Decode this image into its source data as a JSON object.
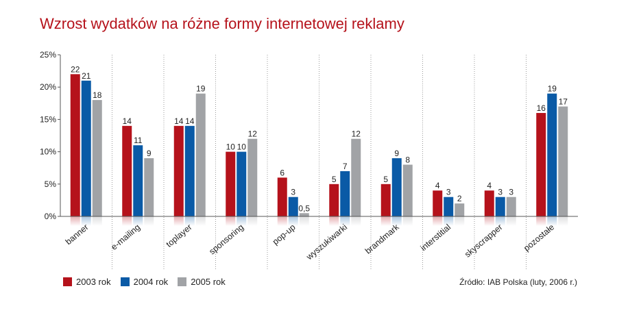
{
  "chart_data": {
    "type": "bar",
    "title": "Wzrost wydatków na różne formy internetowej reklamy",
    "categories": [
      "banner",
      "e-mailing",
      "toplayer",
      "sponsoring",
      "pop-up",
      "wyszukiwarki",
      "brandmark",
      "interstitial",
      "skyscrapper",
      "pozostałe"
    ],
    "series": [
      {
        "name": "2003 rok",
        "color": "#b5121b",
        "values": [
          22,
          14,
          14,
          10,
          6,
          5,
          5,
          4,
          4,
          16
        ],
        "labels": [
          "22",
          "14",
          "14",
          "10",
          "6",
          "5",
          "5",
          "4",
          "4",
          "16"
        ]
      },
      {
        "name": "2004 rok",
        "color": "#0a5aa6",
        "values": [
          21,
          11,
          14,
          10,
          3,
          7,
          9,
          3,
          3,
          19
        ],
        "labels": [
          "21",
          "11",
          "14",
          "10",
          "3",
          "7",
          "9",
          "3",
          "3",
          "19"
        ]
      },
      {
        "name": "2005 rok",
        "color": "#a1a3a6",
        "values": [
          18,
          9,
          19,
          12,
          0.5,
          12,
          8,
          2,
          3,
          17
        ],
        "labels": [
          "18",
          "9",
          "19",
          "12",
          "0,5",
          "12",
          "8",
          "2",
          "3",
          "17"
        ]
      }
    ],
    "yticks": [
      "0%",
      "5%",
      "10%",
      "15%",
      "20%",
      "25%"
    ],
    "ylim": [
      0,
      25
    ],
    "grid": false,
    "legend_position": "bottom-left"
  },
  "source_note": "Źródło: IAB Polska (luty, 2006 r.)"
}
